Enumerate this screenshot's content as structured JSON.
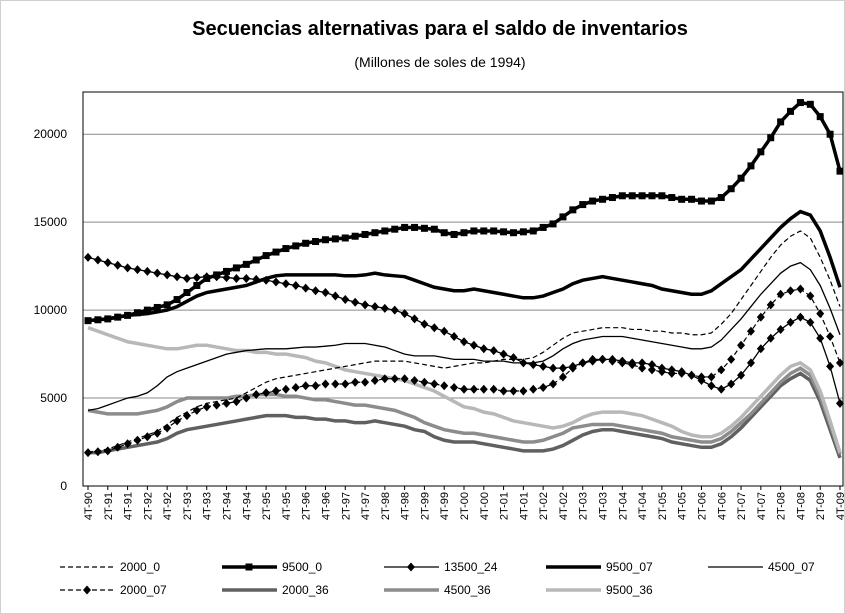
{
  "chart_data": {
    "type": "line",
    "title": "Secuencias alternativas para el saldo de inventarios",
    "subtitle": "(Millones de soles de 1994)",
    "categories": [
      "4T-90",
      null,
      "2T-91",
      null,
      "4T-91",
      null,
      "2T-92",
      null,
      "4T-92",
      null,
      "2T-93",
      null,
      "4T-93",
      null,
      "2T-94",
      null,
      "4T-94",
      null,
      "2T-95",
      null,
      "4T-95",
      null,
      "2T-96",
      null,
      "4T-96",
      null,
      "2T-97",
      null,
      "4T-97",
      null,
      "2T-98",
      null,
      "4T-98",
      null,
      "2T-99",
      null,
      "4T-99",
      null,
      "2T-00",
      null,
      "4T-00",
      null,
      "2T-01",
      null,
      "4T-01",
      null,
      "2T-02",
      null,
      "4T-02",
      null,
      "2T-03",
      null,
      "4T-03",
      null,
      "2T-04",
      null,
      "4T-04",
      null,
      "2T-05",
      null,
      "4T-05",
      null,
      "2T-06",
      null,
      "4T-06",
      null,
      "2T-07",
      null,
      "4T-07",
      null,
      "2T-08",
      null,
      "4T-08",
      null,
      "2T-09",
      null,
      "4T-09"
    ],
    "ylim": [
      0,
      22400
    ],
    "yticks": [
      0,
      5000,
      10000,
      15000,
      20000
    ],
    "grid": true,
    "series": [
      {
        "name": "2000_0",
        "color": "#000000",
        "dash": true,
        "thick": false,
        "values": [
          1900,
          2000,
          2100,
          2300,
          2500,
          2700,
          2900,
          3100,
          3500,
          3900,
          4200,
          4500,
          4700,
          4800,
          4900,
          5000,
          5300,
          5600,
          5900,
          6100,
          6200,
          6300,
          6400,
          6500,
          6600,
          6700,
          6800,
          6900,
          7000,
          7100,
          7100,
          7100,
          7100,
          7000,
          6900,
          6800,
          6700,
          6800,
          6900,
          7000,
          7000,
          7100,
          7200,
          7200,
          7200,
          7300,
          7600,
          8000,
          8400,
          8700,
          8800,
          8900,
          9000,
          9000,
          9000,
          8900,
          8900,
          8800,
          8800,
          8700,
          8700,
          8600,
          8600,
          8700,
          9200,
          9800,
          10600,
          11400,
          12200,
          13000,
          13700,
          14200,
          14500,
          14100,
          13000,
          11700,
          10200
        ]
      },
      {
        "name": "9500_0",
        "color": "#000000",
        "dash": false,
        "thick": true,
        "marker": "square",
        "values": [
          9400,
          9450,
          9500,
          9600,
          9700,
          9850,
          10000,
          10150,
          10300,
          10600,
          11000,
          11400,
          11800,
          12000,
          12200,
          12400,
          12600,
          12850,
          13100,
          13300,
          13500,
          13650,
          13800,
          13900,
          14000,
          14050,
          14100,
          14200,
          14300,
          14400,
          14500,
          14600,
          14700,
          14700,
          14650,
          14600,
          14400,
          14300,
          14400,
          14500,
          14500,
          14500,
          14450,
          14400,
          14450,
          14500,
          14700,
          14900,
          15300,
          15700,
          16000,
          16200,
          16300,
          16400,
          16500,
          16500,
          16500,
          16500,
          16500,
          16400,
          16300,
          16300,
          16200,
          16200,
          16400,
          16900,
          17500,
          18200,
          19000,
          19800,
          20700,
          21300,
          21800,
          21700,
          21000,
          20000,
          17900
        ]
      },
      {
        "name": "13500_24",
        "color": "#000000",
        "dash": false,
        "thick": false,
        "marker": "diamond",
        "values": [
          13000,
          12850,
          12700,
          12550,
          12400,
          12300,
          12200,
          12100,
          12000,
          11900,
          11800,
          11850,
          11900,
          11900,
          11850,
          11800,
          11800,
          11750,
          11700,
          11600,
          11500,
          11400,
          11250,
          11100,
          11000,
          10800,
          10600,
          10450,
          10300,
          10200,
          10100,
          10000,
          9800,
          9500,
          9200,
          9000,
          8800,
          8500,
          8200,
          8000,
          7800,
          7700,
          7500,
          7300,
          7000,
          6900,
          6800,
          6700,
          6700,
          6800,
          7000,
          7100,
          7200,
          7200,
          7100,
          7000,
          7000,
          6900,
          6700,
          6600,
          6500,
          6300,
          6000,
          5700,
          5500,
          5800,
          6300,
          7000,
          7800,
          8400,
          8900,
          9300,
          9600,
          9300,
          8400,
          6800,
          4700
        ]
      },
      {
        "name": "9500_07",
        "color": "#000000",
        "dash": false,
        "thick": true,
        "values": [
          9400,
          9450,
          9500,
          9600,
          9700,
          9750,
          9800,
          9900,
          10000,
          10200,
          10500,
          10800,
          11000,
          11100,
          11200,
          11300,
          11400,
          11600,
          11800,
          11950,
          12000,
          12000,
          12000,
          12000,
          12000,
          12000,
          11950,
          11950,
          12000,
          12100,
          12000,
          11950,
          11900,
          11700,
          11500,
          11300,
          11200,
          11100,
          11100,
          11200,
          11100,
          11000,
          10900,
          10800,
          10700,
          10700,
          10800,
          11000,
          11200,
          11500,
          11700,
          11800,
          11900,
          11800,
          11700,
          11600,
          11500,
          11400,
          11200,
          11100,
          11000,
          10900,
          10900,
          11100,
          11500,
          11900,
          12300,
          12900,
          13500,
          14100,
          14700,
          15200,
          15600,
          15400,
          14500,
          13000,
          11300
        ]
      },
      {
        "name": "4500_07",
        "color": "#000000",
        "dash": false,
        "thick": false,
        "values": [
          4300,
          4400,
          4600,
          4800,
          5000,
          5100,
          5300,
          5700,
          6200,
          6500,
          6700,
          6900,
          7100,
          7300,
          7500,
          7600,
          7700,
          7750,
          7800,
          7800,
          7800,
          7850,
          7900,
          7900,
          7950,
          8000,
          8100,
          8100,
          8100,
          8000,
          7900,
          7700,
          7500,
          7400,
          7400,
          7400,
          7300,
          7200,
          7200,
          7200,
          7100,
          7100,
          7100,
          7000,
          7000,
          7000,
          7100,
          7400,
          7800,
          8100,
          8300,
          8400,
          8500,
          8500,
          8500,
          8400,
          8300,
          8200,
          8100,
          8000,
          7900,
          7800,
          7800,
          7900,
          8300,
          8900,
          9500,
          10200,
          10900,
          11500,
          12100,
          12500,
          12700,
          12300,
          11400,
          10100,
          8600
        ]
      },
      {
        "name": "2000_07",
        "color": "#000000",
        "dash": true,
        "thick": false,
        "marker": "diamond",
        "values": [
          1900,
          1950,
          2000,
          2200,
          2400,
          2600,
          2800,
          3000,
          3300,
          3700,
          4000,
          4300,
          4500,
          4600,
          4700,
          4800,
          5000,
          5200,
          5300,
          5400,
          5500,
          5600,
          5700,
          5700,
          5800,
          5800,
          5800,
          5900,
          5900,
          6000,
          6100,
          6100,
          6100,
          6000,
          5900,
          5800,
          5700,
          5600,
          5500,
          5500,
          5500,
          5500,
          5400,
          5400,
          5400,
          5500,
          5600,
          5800,
          6200,
          6700,
          7000,
          7200,
          7200,
          7100,
          7000,
          6900,
          6700,
          6600,
          6500,
          6400,
          6400,
          6300,
          6200,
          6200,
          6600,
          7200,
          8000,
          8800,
          9600,
          10300,
          10900,
          11100,
          11200,
          10800,
          9800,
          8500,
          7000
        ]
      },
      {
        "name": "2000_36",
        "color": "#606060",
        "dash": false,
        "thick": true,
        "values": [
          1900,
          1900,
          2000,
          2100,
          2200,
          2300,
          2400,
          2500,
          2700,
          3000,
          3200,
          3300,
          3400,
          3500,
          3600,
          3700,
          3800,
          3900,
          4000,
          4000,
          4000,
          3900,
          3900,
          3800,
          3800,
          3700,
          3700,
          3600,
          3600,
          3700,
          3600,
          3500,
          3400,
          3200,
          3100,
          2800,
          2600,
          2500,
          2500,
          2500,
          2400,
          2300,
          2200,
          2100,
          2000,
          2000,
          2000,
          2100,
          2300,
          2600,
          2900,
          3100,
          3200,
          3200,
          3100,
          3000,
          2900,
          2800,
          2700,
          2500,
          2400,
          2300,
          2200,
          2200,
          2400,
          2800,
          3300,
          3900,
          4500,
          5100,
          5700,
          6100,
          6400,
          6000,
          4800,
          3200,
          1600
        ]
      },
      {
        "name": "4500_36",
        "color": "#8c8c8c",
        "dash": false,
        "thick": true,
        "values": [
          4300,
          4200,
          4100,
          4100,
          4100,
          4100,
          4200,
          4300,
          4500,
          4800,
          5000,
          5000,
          5000,
          5000,
          5000,
          5100,
          5100,
          5200,
          5200,
          5200,
          5100,
          5100,
          5000,
          4900,
          4900,
          4800,
          4700,
          4600,
          4600,
          4500,
          4400,
          4300,
          4100,
          3900,
          3600,
          3400,
          3200,
          3100,
          3000,
          3000,
          2900,
          2800,
          2700,
          2600,
          2500,
          2500,
          2600,
          2800,
          3000,
          3300,
          3400,
          3500,
          3500,
          3500,
          3400,
          3300,
          3200,
          3100,
          3000,
          2800,
          2700,
          2600,
          2500,
          2500,
          2700,
          3100,
          3600,
          4100,
          4700,
          5300,
          5900,
          6400,
          6700,
          6300,
          5100,
          3500,
          1800
        ]
      },
      {
        "name": "9500_36",
        "color": "#b8b8b8",
        "dash": false,
        "thick": true,
        "values": [
          9000,
          8800,
          8600,
          8400,
          8200,
          8100,
          8000,
          7900,
          7800,
          7800,
          7900,
          8000,
          8000,
          7900,
          7800,
          7700,
          7700,
          7600,
          7600,
          7500,
          7500,
          7400,
          7300,
          7100,
          7000,
          6800,
          6600,
          6500,
          6400,
          6300,
          6200,
          6100,
          6000,
          5800,
          5600,
          5400,
          5100,
          4800,
          4500,
          4400,
          4200,
          4100,
          3900,
          3700,
          3600,
          3500,
          3400,
          3300,
          3400,
          3600,
          3900,
          4100,
          4200,
          4200,
          4200,
          4100,
          4000,
          3800,
          3600,
          3400,
          3100,
          2900,
          2800,
          2800,
          3000,
          3400,
          3900,
          4500,
          5100,
          5700,
          6300,
          6800,
          7000,
          6600,
          5400,
          3700,
          1900
        ]
      }
    ]
  }
}
